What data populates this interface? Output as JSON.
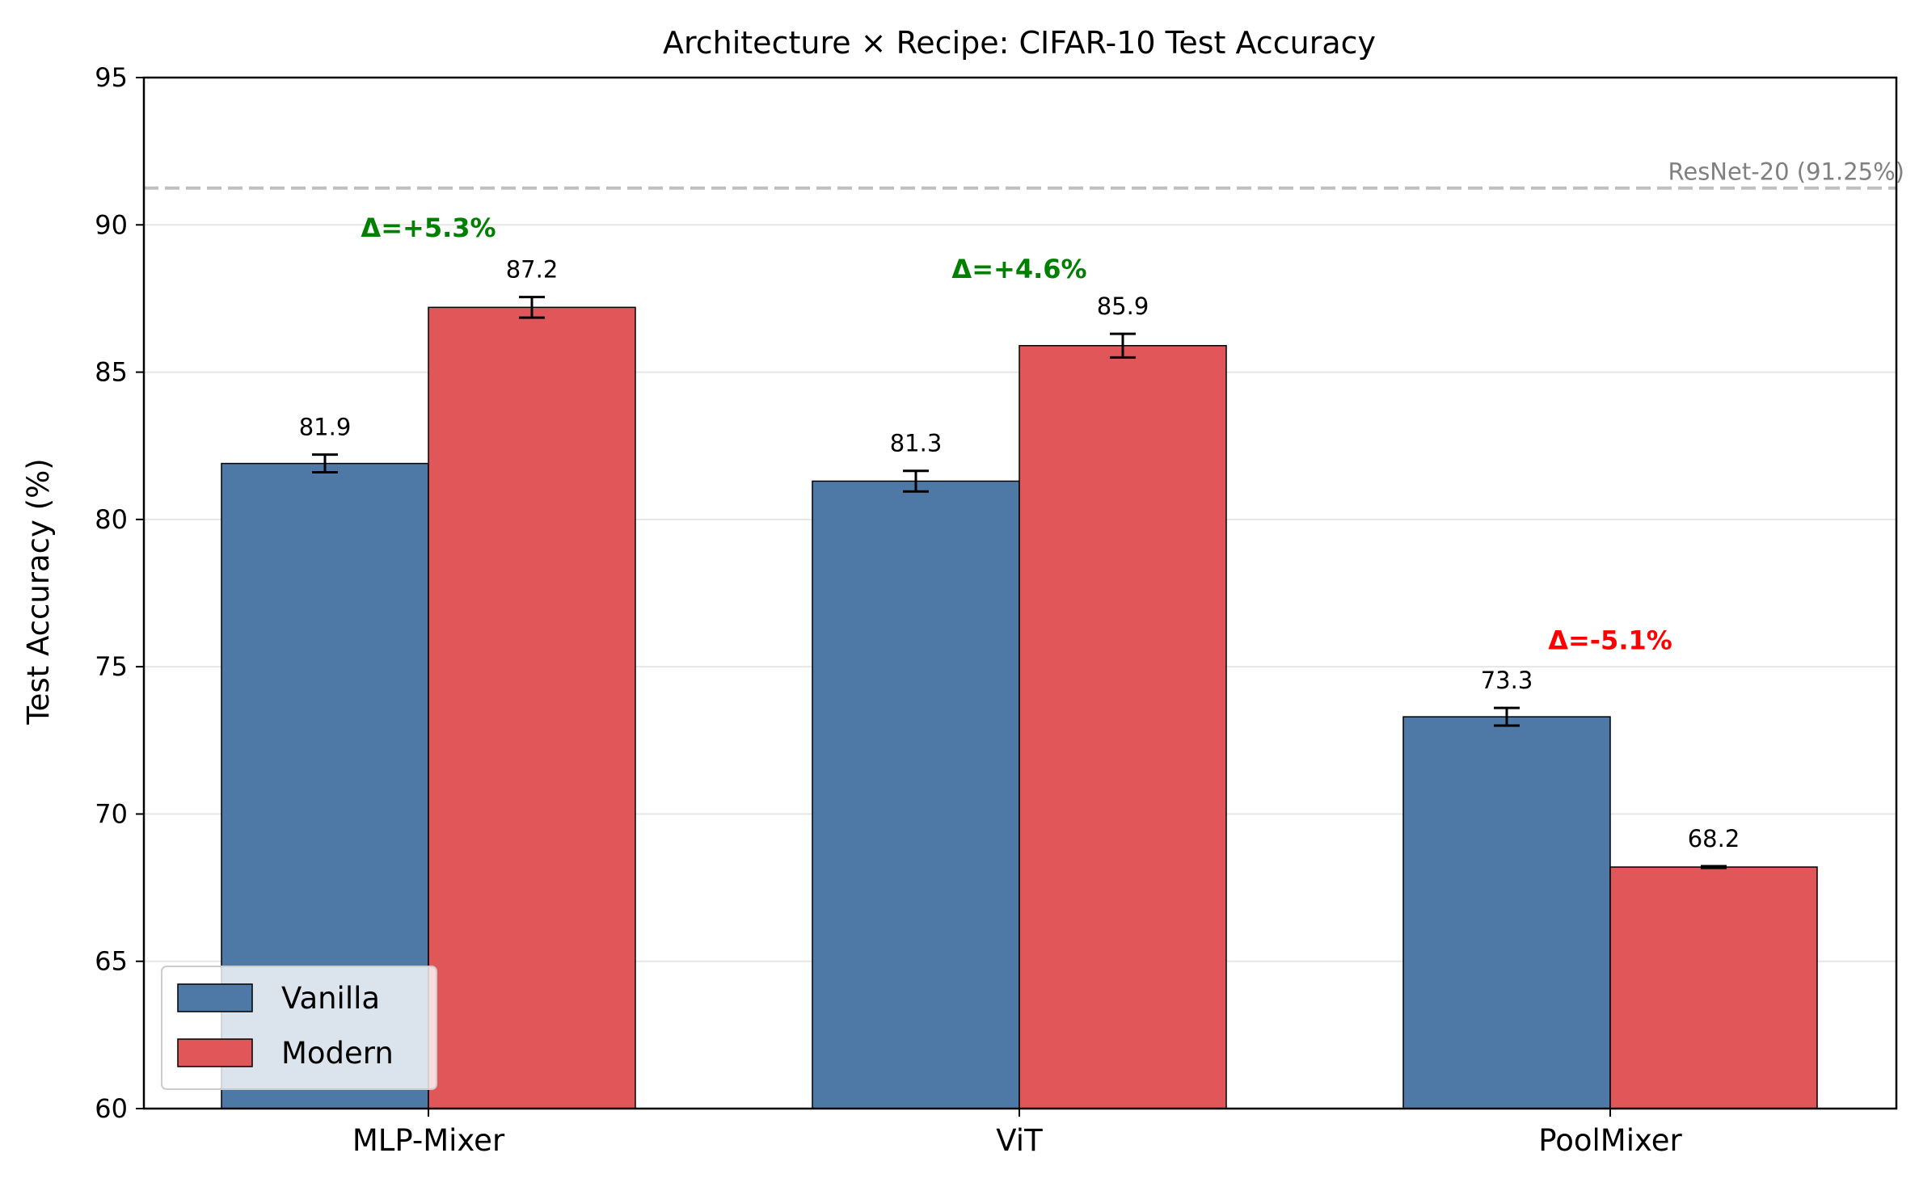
{
  "chart_data": {
    "type": "bar",
    "title": "Architecture × Recipe: CIFAR-10 Test Accuracy",
    "xlabel": "",
    "ylabel": "Test Accuracy (%)",
    "ylim": [
      60,
      95
    ],
    "yticks": [
      60,
      65,
      70,
      75,
      80,
      85,
      90,
      95
    ],
    "categories": [
      "MLP-Mixer",
      "ViT",
      "PoolMixer"
    ],
    "series": [
      {
        "name": "Vanilla",
        "color": "#4e79a7",
        "values": [
          81.9,
          81.3,
          73.3
        ],
        "errors": [
          0.3,
          0.35,
          0.3
        ],
        "labels": [
          "81.9",
          "81.3",
          "73.3"
        ]
      },
      {
        "name": "Modern",
        "color": "#e15759",
        "values": [
          87.2,
          85.9,
          68.2
        ],
        "errors": [
          0.35,
          0.4,
          0.03
        ],
        "labels": [
          "87.2",
          "85.9",
          "68.2"
        ]
      }
    ],
    "deltas": [
      {
        "text": "Δ=+5.3%",
        "color": "#008000",
        "y": 89.9
      },
      {
        "text": "Δ=+4.6%",
        "color": "#008000",
        "y": 88.5
      },
      {
        "text": "Δ=-5.1%",
        "color": "#ff0000",
        "y": 75.9
      }
    ],
    "reference_line": {
      "label": "ResNet-20 (91.25%)",
      "value": 91.25,
      "color": "#c0c0c0"
    },
    "grid": "y",
    "legend": {
      "placement": "lower-left"
    }
  }
}
